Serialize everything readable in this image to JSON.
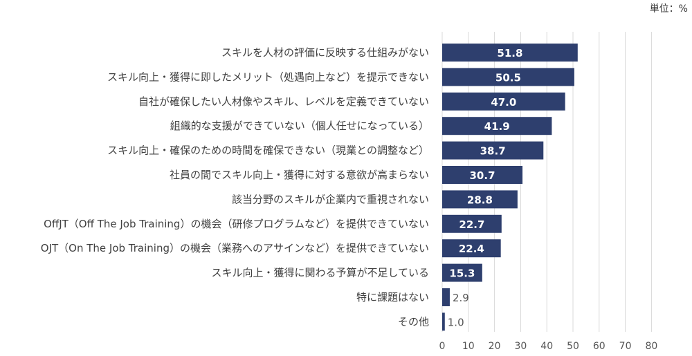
{
  "unit_label": "単位：%",
  "colors": {
    "bar": "#2e3f6e",
    "grid": "#d9d9d9"
  },
  "chart_data": {
    "type": "bar",
    "orientation": "horizontal",
    "categories": [
      "スキルを人材の評価に反映する仕組みがない",
      "スキル向上・獲得に即したメリット（処遇向上など）を提示できない",
      "自社が確保したい人材像やスキル、レベルを定義できていない",
      "組織的な支援ができていない（個人任せになっている）",
      "スキル向上・確保のための時間を確保できない（現業との調整など）",
      "社員の間でスキル向上・獲得に対する意欲が高まらない",
      "該当分野のスキルが企業内で重視されない",
      "OffJT（Off The Job Training）の機会（研修プログラムなど）を提供できていない",
      "OJT（On The Job Training）の機会（業務へのアサインなど）を提供できていない",
      "スキル向上・獲得に関わる予算が不足している",
      "特に課題はない",
      "その他"
    ],
    "values": [
      51.8,
      50.5,
      47.0,
      41.9,
      38.7,
      30.7,
      28.8,
      22.7,
      22.4,
      15.3,
      2.9,
      1.0
    ],
    "value_labels": [
      "51.8",
      "50.5",
      "47.0",
      "41.9",
      "38.7",
      "30.7",
      "28.8",
      "22.7",
      "22.4",
      "15.3",
      "2.9",
      "1.0"
    ],
    "xlim": [
      0,
      80
    ],
    "xticks": [
      0,
      10,
      20,
      30,
      40,
      50,
      60,
      70,
      80
    ],
    "xtick_labels": [
      "0",
      "10",
      "20",
      "30",
      "40",
      "50",
      "60",
      "70",
      "80"
    ],
    "grid": true,
    "legend": false
  }
}
